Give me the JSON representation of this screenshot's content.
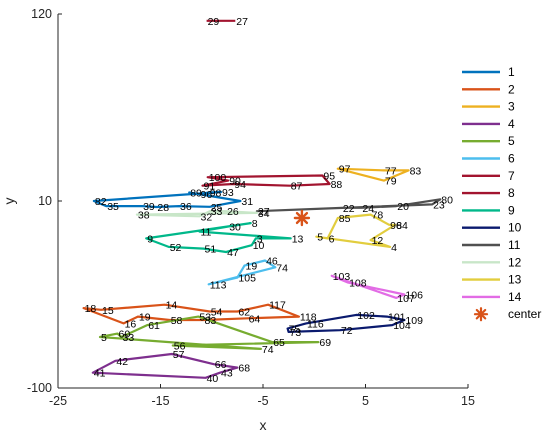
{
  "chart_data": {
    "type": "line",
    "xlabel": "x",
    "ylabel": "y",
    "xlim": [
      -25,
      15
    ],
    "ylim": [
      -100,
      120
    ],
    "x_ticks": [
      "-25",
      "-15",
      "-5",
      "5",
      "15"
    ],
    "y_ticks": [
      "-100",
      "10",
      "120"
    ],
    "grid": false,
    "legend_position": "right",
    "series": [
      {
        "name": "1",
        "color": "#0072BD",
        "points": [
          {
            "label": "82",
            "x": -21.5,
            "y": 10
          },
          {
            "label": "35",
            "x": -20.3,
            "y": 7
          },
          {
            "label": "39",
            "x": -16.8,
            "y": 7
          },
          {
            "label": "28",
            "x": -15.4,
            "y": 6.5
          },
          {
            "label": "36",
            "x": -13.2,
            "y": 7
          },
          {
            "label": "25",
            "x": -10.2,
            "y": 6.6
          },
          {
            "label": "31",
            "x": -7.2,
            "y": 10
          },
          {
            "label": "89",
            "x": -12.2,
            "y": 15
          },
          {
            "label": "96",
            "x": -11.2,
            "y": 14
          },
          {
            "label": "98",
            "x": -10.3,
            "y": 15
          },
          {
            "label": "93",
            "x": -9.1,
            "y": 15.3
          }
        ]
      },
      {
        "name": "2",
        "color": "#D95319",
        "points": [
          {
            "label": "18",
            "x": -22.5,
            "y": -53
          },
          {
            "label": "15",
            "x": -20.8,
            "y": -54
          },
          {
            "label": "14",
            "x": -14.6,
            "y": -51
          },
          {
            "label": "54",
            "x": -10.2,
            "y": -55
          },
          {
            "label": "62",
            "x": -7.5,
            "y": -55
          },
          {
            "label": "117",
            "x": -4.5,
            "y": -51
          },
          {
            "label": "118",
            "x": -1.5,
            "y": -58
          },
          {
            "label": "64",
            "x": -6.5,
            "y": -59
          },
          {
            "label": "83",
            "x": -10.8,
            "y": -60
          },
          {
            "label": "58",
            "x": -14.1,
            "y": -60
          },
          {
            "label": "19",
            "x": -17.2,
            "y": -58
          },
          {
            "label": "16",
            "x": -18.6,
            "y": -62
          }
        ]
      },
      {
        "name": "3",
        "color": "#EDB120",
        "points": [
          {
            "label": "97",
            "x": 2.3,
            "y": 29
          },
          {
            "label": "77",
            "x": 6.8,
            "y": 28
          },
          {
            "label": "83",
            "x": 9.2,
            "y": 28
          },
          {
            "label": "79",
            "x": 6.8,
            "y": 22
          }
        ]
      },
      {
        "name": "4",
        "color": "#7E2F8E",
        "points": [
          {
            "label": "41",
            "x": -21.6,
            "y": -91
          },
          {
            "label": "42",
            "x": -19.4,
            "y": -84
          },
          {
            "label": "57",
            "x": -13.9,
            "y": -80
          },
          {
            "label": "66",
            "x": -9.8,
            "y": -86
          },
          {
            "label": "68",
            "x": -7.5,
            "y": -88
          },
          {
            "label": "43",
            "x": -9.2,
            "y": -91
          },
          {
            "label": "40",
            "x": -10.6,
            "y": -94
          }
        ]
      },
      {
        "name": "5",
        "color": "#77AC30",
        "points": [
          {
            "label": "5",
            "x": -20.9,
            "y": -70
          },
          {
            "label": "60",
            "x": -19.2,
            "y": -68
          },
          {
            "label": "33",
            "x": -18.8,
            "y": -70
          },
          {
            "label": "61",
            "x": -16.3,
            "y": -63
          },
          {
            "label": "53",
            "x": -11.3,
            "y": -58
          },
          {
            "label": "65",
            "x": -4.1,
            "y": -73
          },
          {
            "label": "69",
            "x": 0.4,
            "y": -73
          },
          {
            "label": "56",
            "x": -13.8,
            "y": -75
          },
          {
            "label": "74",
            "x": -5.2,
            "y": -77
          }
        ]
      },
      {
        "name": "6",
        "color": "#4DBEEE",
        "points": [
          {
            "label": "113",
            "x": -10.3,
            "y": -39
          },
          {
            "label": "105",
            "x": -7.5,
            "y": -35
          },
          {
            "label": "19",
            "x": -6.8,
            "y": -28
          },
          {
            "label": "46",
            "x": -4.8,
            "y": -25
          },
          {
            "label": "74",
            "x": -3.8,
            "y": -29
          }
        ]
      },
      {
        "name": "7",
        "color": "#A2142F",
        "points": [
          {
            "label": "100",
            "x": -10.4,
            "y": 24
          },
          {
            "label": "90",
            "x": -8.4,
            "y": 22
          },
          {
            "label": "91",
            "x": -10.9,
            "y": 19
          },
          {
            "label": "94",
            "x": -7.9,
            "y": 20
          },
          {
            "label": "87",
            "x": -2.4,
            "y": 19
          },
          {
            "label": "88",
            "x": 1.5,
            "y": 20
          },
          {
            "label": "95",
            "x": 0.8,
            "y": 25
          }
        ]
      },
      {
        "name": "8",
        "color": "#A2142F",
        "points": [
          {
            "label": "29",
            "x": -10.5,
            "y": 116
          },
          {
            "label": "27",
            "x": -7.7,
            "y": 116
          }
        ]
      },
      {
        "name": "9",
        "color": "#00B88A",
        "points": [
          {
            "label": "9",
            "x": -16.4,
            "y": -12
          },
          {
            "label": "52",
            "x": -14.2,
            "y": -17
          },
          {
            "label": "51",
            "x": -10.8,
            "y": -18
          },
          {
            "label": "47",
            "x": -8.6,
            "y": -20
          },
          {
            "label": "10",
            "x": -6.1,
            "y": -16
          },
          {
            "label": "3",
            "x": -5.7,
            "y": -12
          },
          {
            "label": "13",
            "x": -2.3,
            "y": -12
          },
          {
            "label": "11",
            "x": -11.2,
            "y": -8
          },
          {
            "label": "30",
            "x": -8.4,
            "y": -5
          },
          {
            "label": "8",
            "x": -6.2,
            "y": -3
          }
        ]
      },
      {
        "name": "10",
        "color": "#0A1A6E",
        "points": [
          {
            "label": "75",
            "x": -2.6,
            "y": -65
          },
          {
            "label": "116",
            "x": -0.8,
            "y": -62
          },
          {
            "label": "102",
            "x": 4.1,
            "y": -57
          },
          {
            "label": "101",
            "x": 7.1,
            "y": -58
          },
          {
            "label": "109",
            "x": 8.8,
            "y": -60
          },
          {
            "label": "104",
            "x": 7.6,
            "y": -63
          },
          {
            "label": "72",
            "x": 2.5,
            "y": -66
          },
          {
            "label": "73",
            "x": -2.5,
            "y": -67
          }
        ]
      },
      {
        "name": "11",
        "color": "#505050",
        "points": [
          {
            "label": "27",
            "x": -5.6,
            "y": 4
          },
          {
            "label": "22",
            "x": 2.7,
            "y": 6
          },
          {
            "label": "24",
            "x": 4.6,
            "y": 6
          },
          {
            "label": "20",
            "x": 8,
            "y": 7
          },
          {
            "label": "80",
            "x": 12.3,
            "y": 11
          },
          {
            "label": "23",
            "x": 11.5,
            "y": 8
          }
        ]
      },
      {
        "name": "12",
        "color": "#C8E6C8",
        "points": [
          {
            "label": "38",
            "x": -17.3,
            "y": 2
          },
          {
            "label": "32",
            "x": -11.2,
            "y": 1
          },
          {
            "label": "33",
            "x": -10.2,
            "y": 4
          },
          {
            "label": "26",
            "x": -8.6,
            "y": 4
          },
          {
            "label": "34",
            "x": -5.6,
            "y": 3
          }
        ]
      },
      {
        "name": "13",
        "color": "#E2CD3E",
        "points": [
          {
            "label": "85",
            "x": 2.3,
            "y": 0
          },
          {
            "label": "78",
            "x": 5.5,
            "y": 2
          },
          {
            "label": "96",
            "x": 7.3,
            "y": -4
          },
          {
            "label": "84",
            "x": 7.9,
            "y": -4
          },
          {
            "label": "12",
            "x": 5.5,
            "y": -13
          },
          {
            "label": "4",
            "x": 7.4,
            "y": -17
          },
          {
            "label": "5",
            "x": 0.2,
            "y": -11
          },
          {
            "label": "6",
            "x": 1.3,
            "y": -12
          }
        ]
      },
      {
        "name": "14",
        "color": "#E26CE5",
        "points": [
          {
            "label": "103",
            "x": 1.7,
            "y": -34
          },
          {
            "label": "108",
            "x": 3.3,
            "y": -38
          },
          {
            "label": "106",
            "x": 8.8,
            "y": -45
          },
          {
            "label": "107",
            "x": 8,
            "y": -47
          }
        ]
      }
    ],
    "marker_series": {
      "name": "center",
      "color": "#D95319",
      "x": -1.2,
      "y": 0
    }
  }
}
